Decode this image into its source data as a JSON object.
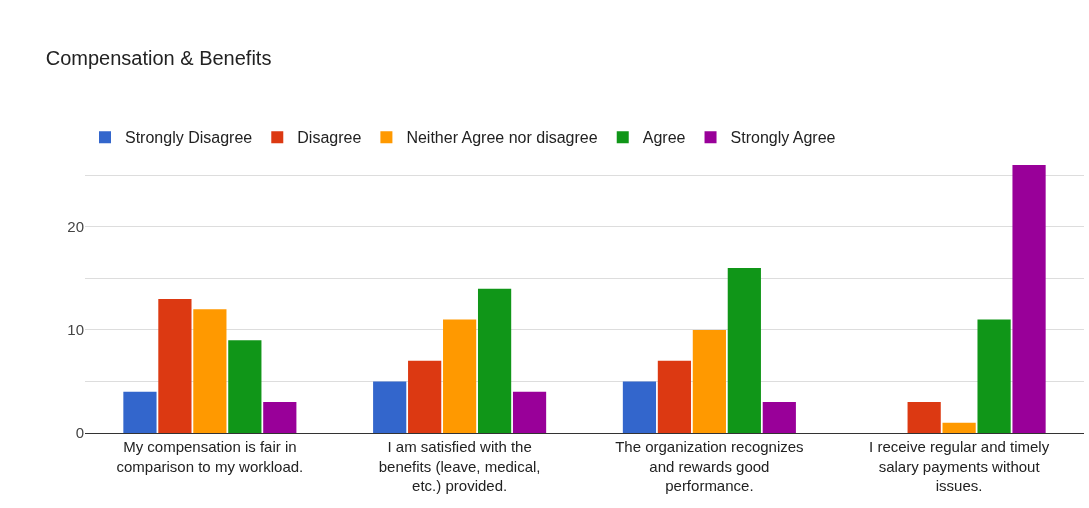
{
  "chart_data": {
    "type": "bar",
    "title": "Compensation & Benefits",
    "categories": [
      "My compensation is fair in comparison to my workload.",
      "I am satisfied with the benefits (leave, medical, etc.) provided.",
      "The organization recognizes and rewards good performance.",
      "I receive regular and timely salary payments without issues."
    ],
    "series": [
      {
        "name": "Strongly Disagree",
        "color": "#3366cc",
        "values": [
          4,
          5,
          5,
          0
        ]
      },
      {
        "name": "Disagree",
        "color": "#dc3912",
        "values": [
          13,
          7,
          7,
          3
        ]
      },
      {
        "name": "Neither Agree nor disagree",
        "color": "#ff9900",
        "values": [
          12,
          11,
          10,
          1
        ]
      },
      {
        "name": "Agree",
        "color": "#109618",
        "values": [
          9,
          14,
          16,
          11
        ]
      },
      {
        "name": "Strongly Agree",
        "color": "#990099",
        "values": [
          3,
          4,
          3,
          26
        ]
      }
    ],
    "ylim": [
      0,
      26
    ],
    "yticks": [
      0,
      {
        "value": 5,
        "label": null
      },
      10,
      {
        "value": 15,
        "label": null
      },
      20,
      {
        "value": 25,
        "label": null
      }
    ],
    "grid": "y",
    "legend": "top"
  }
}
